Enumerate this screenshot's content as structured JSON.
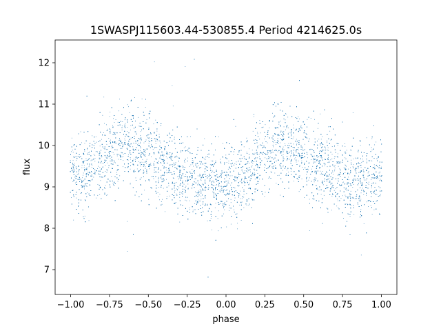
{
  "chart_data": {
    "type": "scatter",
    "title": "1SWASPJ115603.44-530855.4 Period 4214625.0s",
    "xlabel": "phase",
    "ylabel": "flux",
    "xlim": [
      -1.1,
      1.1
    ],
    "ylim": [
      6.4,
      12.55
    ],
    "xticks": [
      -1.0,
      -0.75,
      -0.5,
      -0.25,
      0.0,
      0.25,
      0.5,
      0.75,
      1.0
    ],
    "xtick_labels": [
      "−1.00",
      "−0.75",
      "−0.50",
      "−0.25",
      "0.00",
      "0.25",
      "0.50",
      "0.75",
      "1.00"
    ],
    "yticks": [
      7,
      8,
      9,
      10,
      11,
      12
    ],
    "ytick_labels": [
      "7",
      "8",
      "9",
      "10",
      "11",
      "12"
    ],
    "grid": false,
    "legend": "none",
    "series": [
      {
        "color": "#1f77b4",
        "marker_size": "tiny",
        "n_points_approx": 9000,
        "phase_range": [
          -1.0,
          1.0
        ],
        "mean_flux_profile": {
          "phase": [
            -1.0,
            -0.9,
            -0.8,
            -0.75,
            -0.65,
            -0.55,
            -0.5,
            -0.45,
            -0.35,
            -0.25,
            -0.2,
            -0.1,
            0.0,
            0.1,
            0.2,
            0.25,
            0.35,
            0.45,
            0.5,
            0.55,
            0.65,
            0.75,
            0.8,
            0.9,
            1.0
          ],
          "flux": [
            9.3,
            9.3,
            9.6,
            9.8,
            10.0,
            9.9,
            9.8,
            9.7,
            9.4,
            9.2,
            9.1,
            9.1,
            9.1,
            9.2,
            9.6,
            9.8,
            10.0,
            9.9,
            9.8,
            9.6,
            9.4,
            9.2,
            9.1,
            9.2,
            9.3
          ]
        },
        "typical_spread": 0.45,
        "outlier_flux_range": [
          6.7,
          12.3
        ]
      }
    ]
  }
}
